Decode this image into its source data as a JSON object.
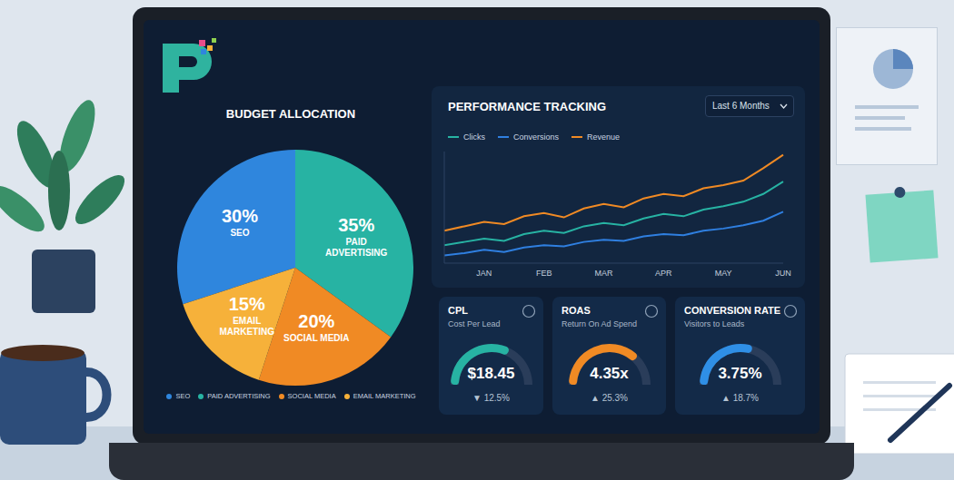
{
  "chart_data": [
    {
      "type": "pie",
      "title": "BUDGET ALLOCATION",
      "categories": [
        "SEO",
        "PAID ADVERTISING",
        "SOCIAL MEDIA",
        "EMAIL MARKETING"
      ],
      "values": [
        30,
        35,
        20,
        15
      ],
      "value_labels": [
        "30%",
        "35%",
        "20%",
        "15%"
      ],
      "colors": [
        "#2f86dd",
        "#27b3a3",
        "#f08a24",
        "#f6b13a"
      ],
      "data_labels": true,
      "legend": "bottom"
    },
    {
      "type": "line",
      "title": "PERFORMANCE TRACKING",
      "subtitle": "Last 6 Months",
      "categories": [
        null,
        null,
        "JAN",
        null,
        null,
        "FEB",
        null,
        null,
        "MAR",
        null,
        null,
        "APR",
        null,
        null,
        "MAY",
        null,
        null,
        "JUN"
      ],
      "series": [
        {
          "name": "Clicks",
          "color": "#27b3a3",
          "values": [
            16,
            19,
            22,
            20,
            26,
            29,
            27,
            33,
            36,
            34,
            40,
            44,
            42,
            48,
            51,
            55,
            62,
            73
          ]
        },
        {
          "name": "Conversions",
          "color": "#2f7fe0",
          "values": [
            7,
            9,
            12,
            10,
            14,
            16,
            15,
            19,
            21,
            20,
            24,
            26,
            25,
            29,
            31,
            34,
            38,
            46
          ]
        },
        {
          "name": "Revenue",
          "color": "#f08a24",
          "values": [
            29,
            33,
            37,
            35,
            42,
            45,
            41,
            49,
            53,
            50,
            58,
            62,
            60,
            67,
            70,
            74,
            85,
            97
          ]
        }
      ],
      "ylim": [
        0,
        100
      ],
      "tick_labels": "x",
      "legend": "top"
    },
    {
      "type": "gauge",
      "title": "CPL",
      "subtitle": "Cost Per Lead",
      "value_label": "$18.45",
      "change_label": "▼ 12.5%",
      "gauge": {
        "value": 65,
        "lim": [
          0,
          100
        ]
      },
      "color": "#27b3a3"
    },
    {
      "type": "gauge",
      "title": "ROAS",
      "subtitle": "Return On Ad Spend",
      "value_label": "4.35x",
      "change_label": "▲ 25.3%",
      "gauge": {
        "value": 75,
        "lim": [
          0,
          100
        ]
      },
      "color": "#f08a24"
    },
    {
      "type": "gauge",
      "title": "CONVERSION RATE",
      "subtitle": "Visitors to Leads",
      "value_label": "3.75%",
      "change_label": "▲ 18.7%",
      "gauge": {
        "value": 60,
        "lim": [
          0,
          100
        ]
      },
      "color": "#2f8fe6"
    }
  ]
}
